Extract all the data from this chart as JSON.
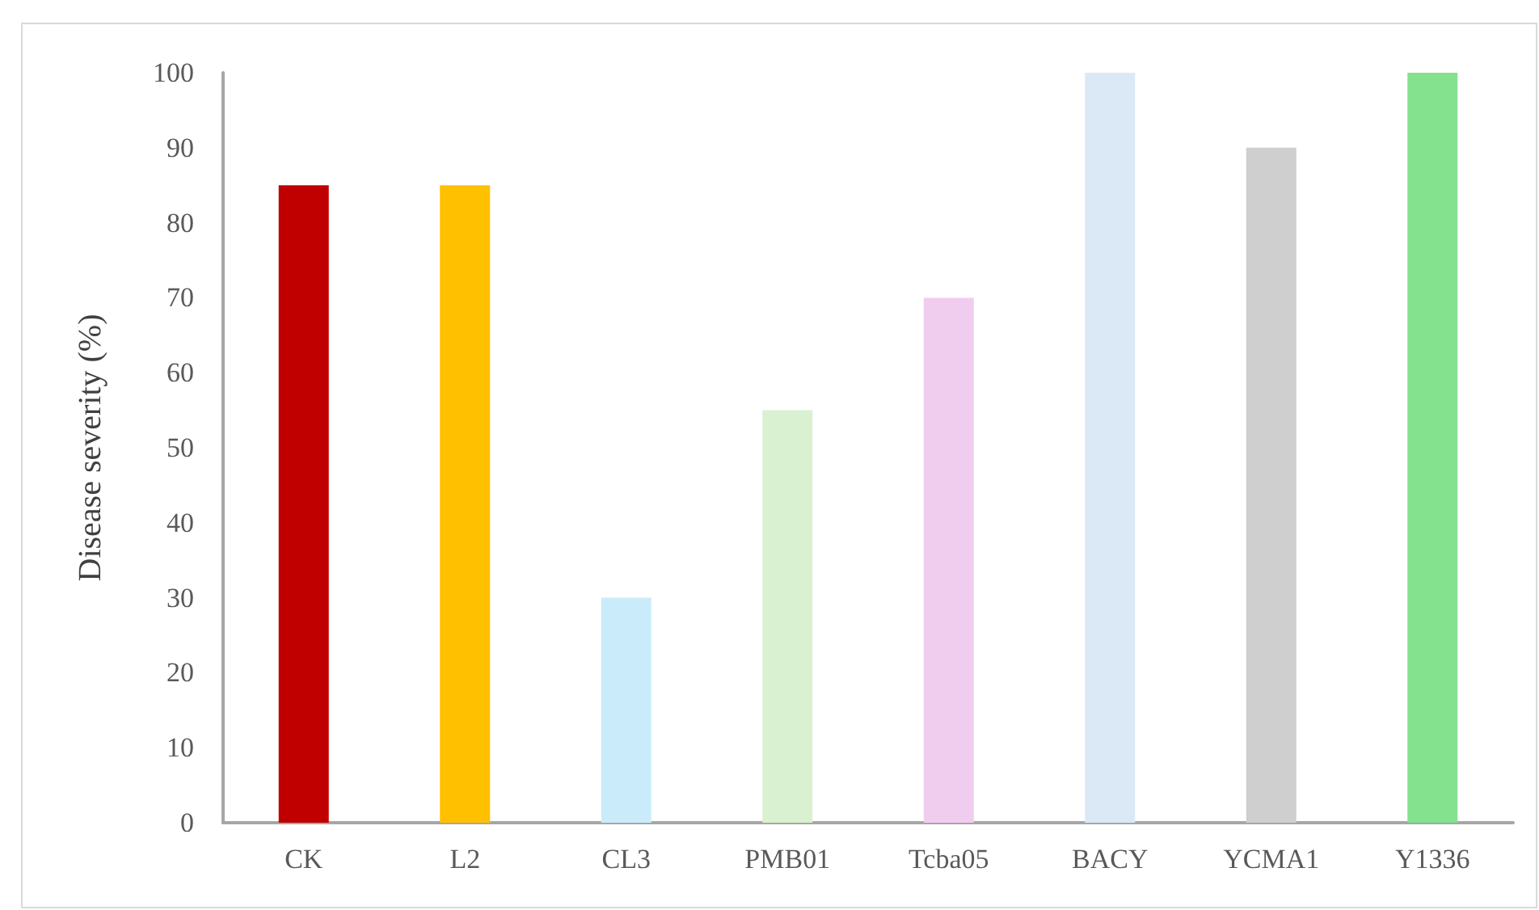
{
  "chart_data": {
    "type": "bar",
    "ylabel": "Disease severity (%)",
    "categories": [
      "CK",
      "L2",
      "CL3",
      "PMB01",
      "Tcba05",
      "BACY",
      "YCMA1",
      "Y1336"
    ],
    "values": [
      85,
      85,
      30,
      55,
      70,
      100,
      90,
      100
    ],
    "colors": [
      "#c00000",
      "#ffc000",
      "#caecfa",
      "#d9f1d1",
      "#f0cdee",
      "#dbe8f6",
      "#cfcfcf",
      "#84e18e"
    ],
    "ylim": [
      0,
      100
    ],
    "yticks": [
      0,
      10,
      20,
      30,
      40,
      50,
      60,
      70,
      80,
      90,
      100
    ],
    "grid": false
  }
}
